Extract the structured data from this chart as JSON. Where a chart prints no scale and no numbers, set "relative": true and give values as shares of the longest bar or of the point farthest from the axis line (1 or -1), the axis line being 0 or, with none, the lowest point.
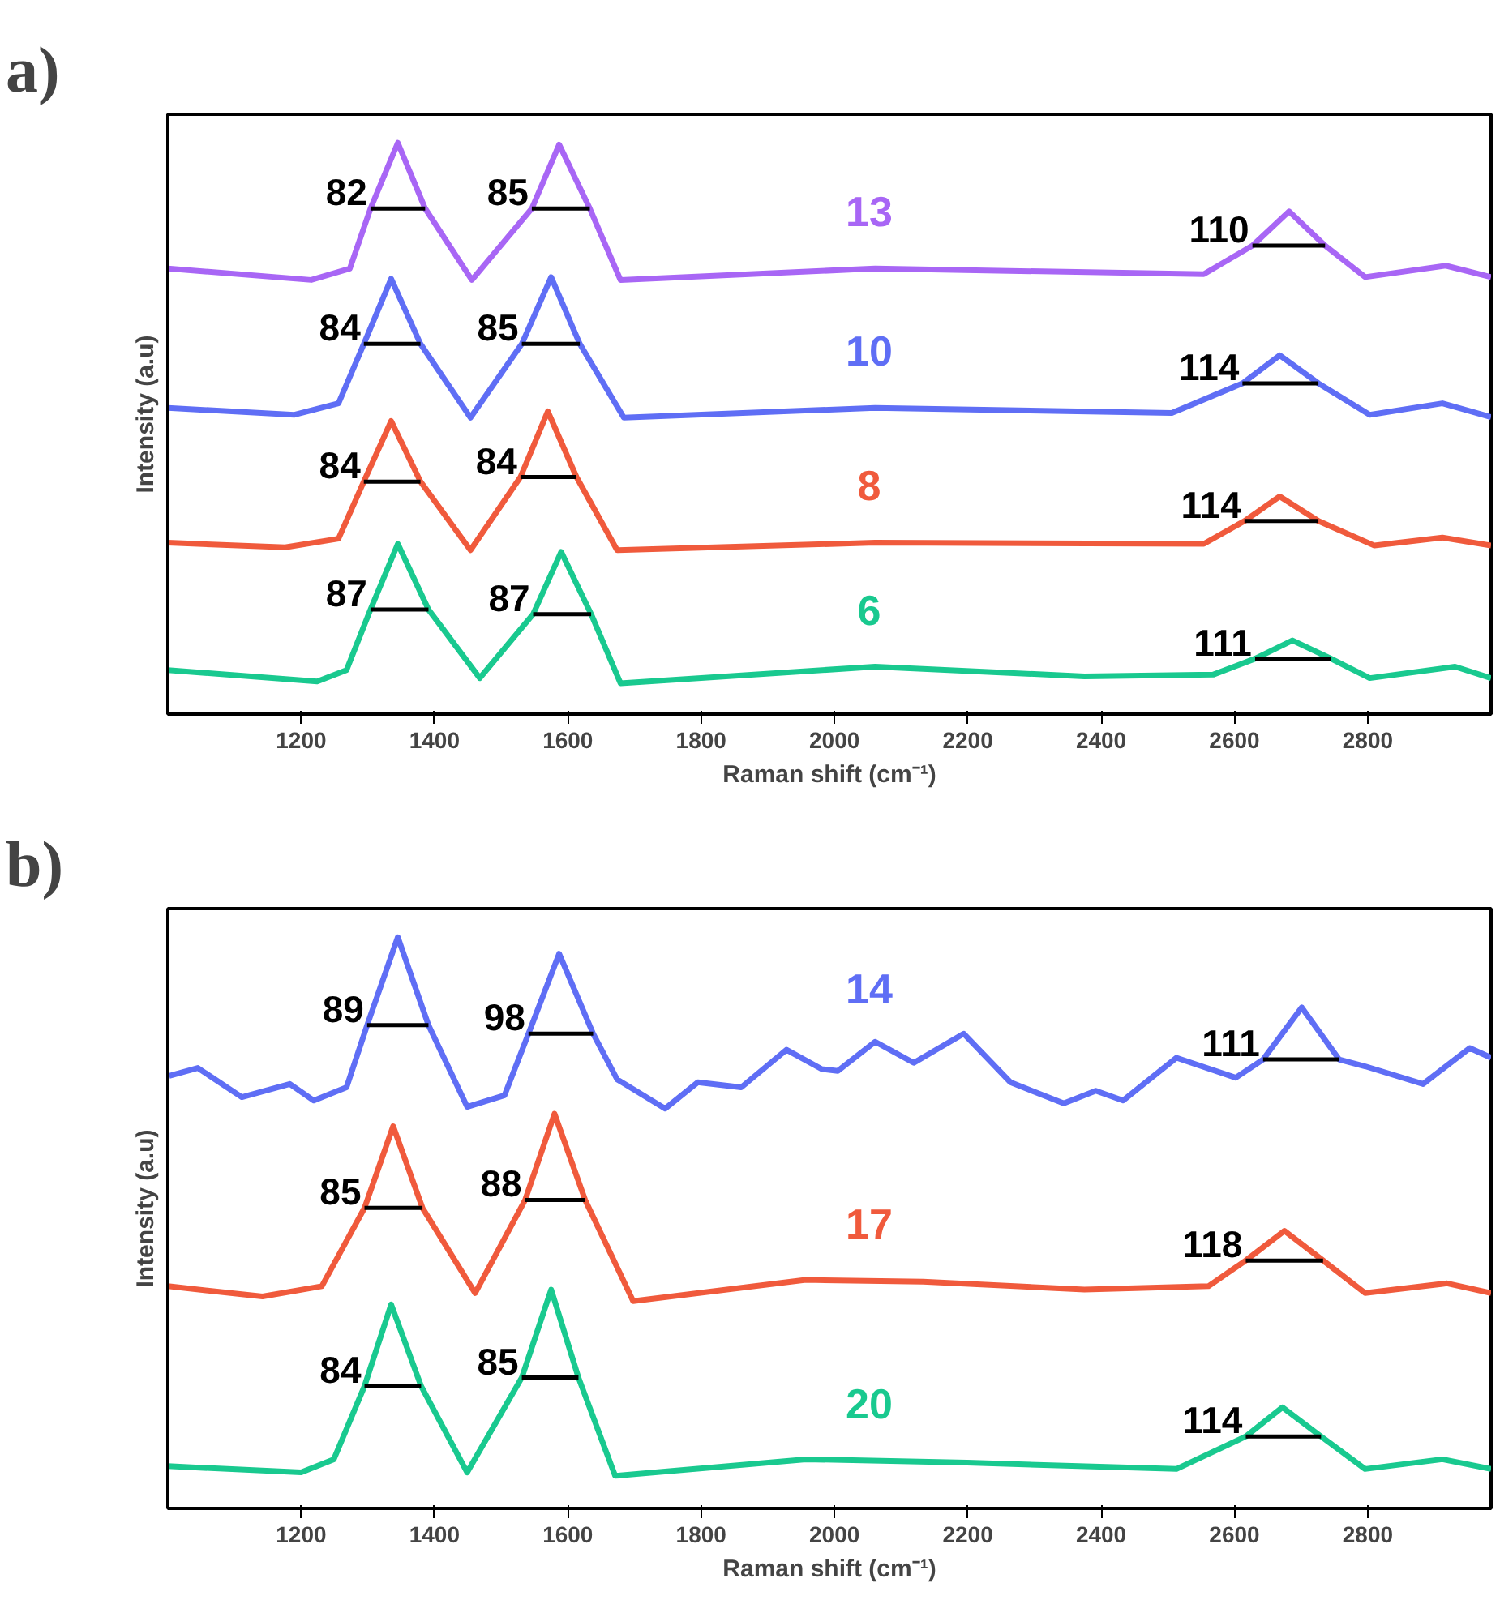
{
  "chart_data": [
    {
      "type": "line",
      "title": "a)",
      "xlabel": "Raman shift (cm⁻¹)",
      "ylabel": "Intensity (a.u)",
      "relative": true,
      "xlim": [
        1000,
        2985
      ],
      "xticks": [
        1200,
        1400,
        1600,
        1800,
        2000,
        2200,
        2400,
        2600,
        2800
      ],
      "tick_labels": "x",
      "marker": "none",
      "line_style": "solid",
      "annotations": [
        {
          "text": "82",
          "x": 1304,
          "y": 0.885
        },
        {
          "text": "85",
          "x": 1546,
          "y": 0.885
        },
        {
          "text": "110",
          "x": 2627,
          "y": 0.82
        },
        {
          "text": "84",
          "x": 1294,
          "y": 0.648
        },
        {
          "text": "85",
          "x": 1531,
          "y": 0.648
        },
        {
          "text": "114",
          "x": 2612,
          "y": 0.579
        },
        {
          "text": "84",
          "x": 1294,
          "y": 0.407
        },
        {
          "text": "84",
          "x": 1529,
          "y": 0.415
        },
        {
          "text": "114",
          "x": 2615,
          "y": 0.338
        },
        {
          "text": "87",
          "x": 1304,
          "y": 0.183
        },
        {
          "text": "87",
          "x": 1548,
          "y": 0.175
        },
        {
          "text": "111",
          "x": 2631,
          "y": 0.097
        }
      ],
      "series": [
        {
          "name": "13",
          "color": "#a866f5",
          "x": [
            1000,
            1215,
            1273,
            1304,
            1345,
            1386,
            1456,
            1546,
            1587,
            1633,
            1679,
            2061,
            2554,
            2627,
            2682,
            2736,
            2796,
            2917,
            2985
          ],
          "values": [
            0.78,
            0.76,
            0.78,
            0.885,
            1.0,
            0.885,
            0.76,
            0.885,
            0.997,
            0.885,
            0.76,
            0.78,
            0.77,
            0.82,
            0.88,
            0.82,
            0.765,
            0.785,
            0.765
          ]
        },
        {
          "name": "10",
          "color": "#5f6ef5",
          "x": [
            1000,
            1190,
            1256,
            1294,
            1335,
            1379,
            1454,
            1531,
            1575,
            1618,
            1684,
            2061,
            2506,
            2612,
            2668,
            2726,
            2803,
            2912,
            2985
          ],
          "values": [
            0.536,
            0.524,
            0.544,
            0.648,
            0.762,
            0.648,
            0.519,
            0.648,
            0.765,
            0.648,
            0.519,
            0.536,
            0.527,
            0.579,
            0.628,
            0.579,
            0.524,
            0.544,
            0.52
          ]
        },
        {
          "name": "8",
          "color": "#f05a3c",
          "x": [
            1000,
            1176,
            1256,
            1294,
            1335,
            1379,
            1454,
            1529,
            1570,
            1613,
            1674,
            2061,
            2554,
            2615,
            2668,
            2726,
            2810,
            2912,
            2985
          ],
          "values": [
            0.3,
            0.292,
            0.307,
            0.407,
            0.513,
            0.407,
            0.287,
            0.415,
            0.53,
            0.415,
            0.287,
            0.3,
            0.298,
            0.338,
            0.381,
            0.338,
            0.295,
            0.309,
            0.295
          ]
        },
        {
          "name": "6",
          "color": "#19c98f",
          "x": [
            1000,
            1224,
            1268,
            1304,
            1345,
            1391,
            1468,
            1548,
            1590,
            1635,
            1679,
            2061,
            2375,
            2568,
            2631,
            2687,
            2745,
            2803,
            2931,
            2985
          ],
          "values": [
            0.077,
            0.057,
            0.077,
            0.183,
            0.298,
            0.183,
            0.063,
            0.175,
            0.284,
            0.175,
            0.054,
            0.083,
            0.066,
            0.069,
            0.097,
            0.129,
            0.097,
            0.063,
            0.083,
            0.063
          ]
        },
        {
          "color": "#000000",
          "x": [
            1304,
            1386
          ],
          "values": [
            0.885,
            0.885
          ]
        },
        {
          "color": "#000000",
          "x": [
            1546,
            1633
          ],
          "values": [
            0.885,
            0.885
          ]
        },
        {
          "color": "#000000",
          "x": [
            2627,
            2736
          ],
          "values": [
            0.82,
            0.82
          ]
        },
        {
          "color": "#000000",
          "x": [
            1294,
            1379
          ],
          "values": [
            0.648,
            0.648
          ]
        },
        {
          "color": "#000000",
          "x": [
            1531,
            1618
          ],
          "values": [
            0.648,
            0.648
          ]
        },
        {
          "color": "#000000",
          "x": [
            2612,
            2726
          ],
          "values": [
            0.579,
            0.579
          ]
        },
        {
          "color": "#000000",
          "x": [
            1294,
            1379
          ],
          "values": [
            0.407,
            0.407
          ]
        },
        {
          "color": "#000000",
          "x": [
            1529,
            1613
          ],
          "values": [
            0.415,
            0.415
          ]
        },
        {
          "color": "#000000",
          "x": [
            2615,
            2726
          ],
          "values": [
            0.338,
            0.338
          ]
        },
        {
          "color": "#000000",
          "x": [
            1304,
            1391
          ],
          "values": [
            0.183,
            0.183
          ]
        },
        {
          "color": "#000000",
          "x": [
            1548,
            1635
          ],
          "values": [
            0.175,
            0.175
          ]
        },
        {
          "color": "#000000",
          "x": [
            2631,
            2745
          ],
          "values": [
            0.097,
            0.097
          ]
        }
      ]
    },
    {
      "type": "line",
      "title": "b)",
      "xlabel": "Raman shift (cm⁻¹)",
      "ylabel": "Intensity (a.u)",
      "relative": true,
      "xlim": [
        1000,
        2985
      ],
      "xticks": [
        1200,
        1400,
        1600,
        1800,
        2000,
        2200,
        2400,
        2600,
        2800
      ],
      "tick_labels": "x",
      "marker": "none",
      "line_style": "solid",
      "annotations": [
        {
          "text": "89",
          "x": 1299,
          "y": 0.846
        },
        {
          "text": "98",
          "x": 1541,
          "y": 0.831
        },
        {
          "text": "111",
          "x": 2643,
          "y": 0.786
        },
        {
          "text": "85",
          "x": 1295,
          "y": 0.526
        },
        {
          "text": "88",
          "x": 1536,
          "y": 0.54
        },
        {
          "text": "118",
          "x": 2617,
          "y": 0.434
        },
        {
          "text": "84",
          "x": 1295,
          "y": 0.214
        },
        {
          "text": "85",
          "x": 1531,
          "y": 0.229
        },
        {
          "text": "114",
          "x": 2617,
          "y": 0.126
        }
      ],
      "series": [
        {
          "name": "14",
          "color": "#5f6ef5",
          "x": [
            1002,
            1045,
            1111,
            1183,
            1219,
            1268,
            1299,
            1345,
            1391,
            1449,
            1505,
            1541,
            1587,
            1638,
            1674,
            1746,
            1795,
            1860,
            1928,
            1981,
            2005,
            2061,
            2119,
            2194,
            2264,
            2344,
            2392,
            2433,
            2513,
            2602,
            2643,
            2701,
            2757,
            2796,
            2883,
            2953,
            2985
          ],
          "values": [
            0.757,
            0.771,
            0.72,
            0.743,
            0.714,
            0.737,
            0.846,
            1.0,
            0.846,
            0.703,
            0.723,
            0.831,
            0.971,
            0.831,
            0.751,
            0.7,
            0.746,
            0.737,
            0.803,
            0.769,
            0.766,
            0.817,
            0.78,
            0.831,
            0.746,
            0.709,
            0.731,
            0.714,
            0.789,
            0.754,
            0.786,
            0.877,
            0.786,
            0.774,
            0.743,
            0.806,
            0.789
          ]
        },
        {
          "name": "17",
          "color": "#f05a3c",
          "x": [
            1000,
            1142,
            1231,
            1295,
            1338,
            1382,
            1461,
            1536,
            1580,
            1626,
            1698,
            1957,
            2133,
            2375,
            2561,
            2617,
            2675,
            2733,
            2796,
            2919,
            2985
          ],
          "values": [
            0.389,
            0.371,
            0.389,
            0.526,
            0.669,
            0.526,
            0.377,
            0.54,
            0.691,
            0.54,
            0.363,
            0.4,
            0.397,
            0.383,
            0.389,
            0.434,
            0.486,
            0.434,
            0.377,
            0.394,
            0.377
          ]
        },
        {
          "name": "20",
          "color": "#19c98f",
          "x": [
            1000,
            1200,
            1249,
            1295,
            1335,
            1380,
            1449,
            1531,
            1575,
            1616,
            1671,
            1957,
            2199,
            2513,
            2617,
            2672,
            2730,
            2796,
            2912,
            2985
          ],
          "values": [
            0.074,
            0.063,
            0.086,
            0.214,
            0.357,
            0.214,
            0.063,
            0.229,
            0.383,
            0.229,
            0.057,
            0.086,
            0.08,
            0.069,
            0.126,
            0.177,
            0.126,
            0.069,
            0.086,
            0.069
          ]
        },
        {
          "color": "#000000",
          "x": [
            1299,
            1391
          ],
          "values": [
            0.846,
            0.846
          ]
        },
        {
          "color": "#000000",
          "x": [
            1541,
            1638
          ],
          "values": [
            0.831,
            0.831
          ]
        },
        {
          "color": "#000000",
          "x": [
            2643,
            2757
          ],
          "values": [
            0.786,
            0.786
          ]
        },
        {
          "color": "#000000",
          "x": [
            1295,
            1382
          ],
          "values": [
            0.526,
            0.526
          ]
        },
        {
          "color": "#000000",
          "x": [
            1536,
            1626
          ],
          "values": [
            0.54,
            0.54
          ]
        },
        {
          "color": "#000000",
          "x": [
            2617,
            2733
          ],
          "values": [
            0.434,
            0.434
          ]
        },
        {
          "color": "#000000",
          "x": [
            1295,
            1380
          ],
          "values": [
            0.214,
            0.214
          ]
        },
        {
          "color": "#000000",
          "x": [
            1531,
            1616
          ],
          "values": [
            0.229,
            0.229
          ]
        },
        {
          "color": "#000000",
          "x": [
            2617,
            2730
          ],
          "values": [
            0.126,
            0.126
          ]
        }
      ]
    }
  ]
}
